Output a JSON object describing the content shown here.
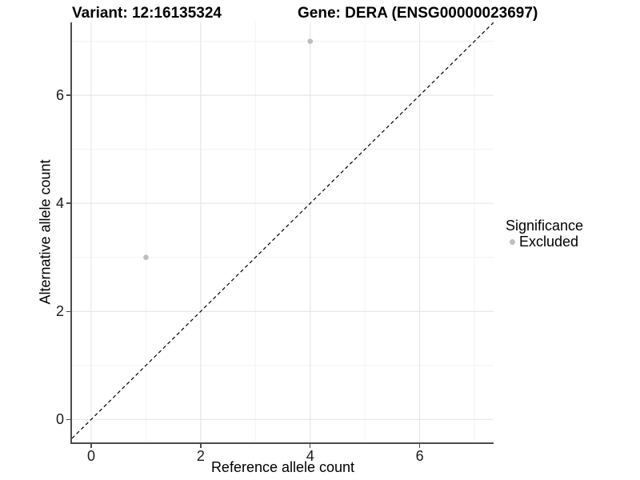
{
  "chart_data": {
    "type": "scatter",
    "titles": {
      "left": "Variant: 12:16135324",
      "right": "Gene: DERA (ENSG00000023697)"
    },
    "xlabel": "Reference allele count",
    "ylabel": "Alternative allele count",
    "x_ticks": [
      0,
      2,
      4,
      6
    ],
    "y_ticks": [
      0,
      2,
      4,
      6
    ],
    "x_minor_ticks": [
      1,
      3,
      5,
      7
    ],
    "y_minor_ticks": [
      1,
      3,
      5,
      7
    ],
    "xlim": [
      -0.35,
      7.35
    ],
    "ylim": [
      -0.425,
      7.35
    ],
    "grid": true,
    "points": [
      {
        "x": 1,
        "y": 3,
        "significance": "Excluded"
      },
      {
        "x": 4,
        "y": 7,
        "significance": "Excluded"
      }
    ],
    "reference_line": {
      "type": "identity",
      "slope": 1,
      "intercept": 0,
      "linestyle": "dashed",
      "color": "#000000"
    },
    "legend": {
      "title": "Significance",
      "position": "right",
      "entries": [
        {
          "label": "Excluded",
          "color": "#bebebe"
        }
      ]
    },
    "colors": {
      "point": "#bebebe",
      "grid_major": "#e7e7e7",
      "grid_minor": "#f3f3f3",
      "axis_line": "#4d4d4d",
      "tick_label": "#1a1a1a",
      "title": "#000000"
    }
  }
}
